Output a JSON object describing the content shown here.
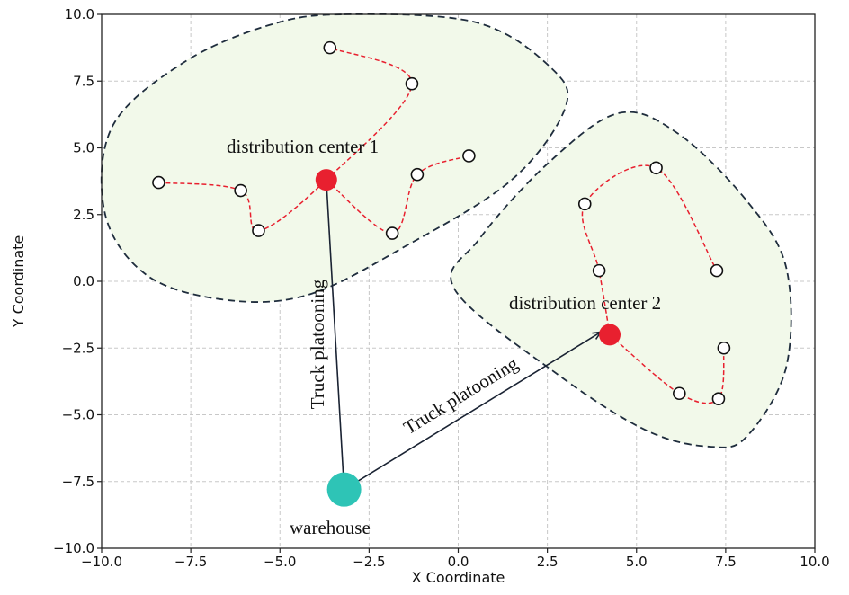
{
  "chart_data": {
    "type": "scatter",
    "xlabel": "X Coordinate",
    "ylabel": "Y Coordinate",
    "xlim": [
      -10,
      10
    ],
    "ylim": [
      -10,
      10
    ],
    "x_ticks": [
      -10,
      -7.5,
      -5,
      -2.5,
      0,
      2.5,
      5,
      7.5,
      10
    ],
    "y_ticks": [
      -10,
      -7.5,
      -5,
      -2.5,
      0,
      2.5,
      5,
      7.5,
      10
    ],
    "x_tick_labels": [
      "−10.0",
      "−7.5",
      "−5.0",
      "−2.5",
      "0.0",
      "2.5",
      "5.0",
      "7.5",
      "10.0"
    ],
    "y_tick_labels": [
      "−10.0",
      "−7.5",
      "−5.0",
      "−2.5",
      "0.0",
      "2.5",
      "5.0",
      "7.5",
      "10.0"
    ],
    "grid": true,
    "warehouse": {
      "label": "warehouse",
      "x": -3.2,
      "y": -7.8
    },
    "distribution_centers": [
      {
        "label": "distribution center 1",
        "x": -3.7,
        "y": 3.8
      },
      {
        "label": "distribution center 2",
        "x": 4.25,
        "y": -2.0
      }
    ],
    "platooning_links": [
      {
        "label": "Truck platooning",
        "from": [
          -3.2,
          -7.8
        ],
        "to": [
          -3.7,
          3.8
        ]
      },
      {
        "label": "Truck platooning",
        "from": [
          -3.2,
          -7.8
        ],
        "to": [
          4.0,
          -1.9
        ]
      }
    ],
    "customer_routes": [
      [
        [
          -8.4,
          3.7
        ],
        [
          -6.1,
          3.4
        ],
        [
          -5.6,
          1.9
        ],
        [
          -3.7,
          3.8
        ],
        [
          -1.3,
          7.4
        ],
        [
          -3.6,
          8.75
        ]
      ],
      [
        [
          -3.7,
          3.8
        ],
        [
          -1.85,
          1.8
        ],
        [
          -1.15,
          4.0
        ],
        [
          0.3,
          4.7
        ]
      ],
      [
        [
          4.25,
          -2.0
        ],
        [
          3.95,
          0.4
        ],
        [
          3.55,
          2.9
        ],
        [
          5.55,
          4.25
        ],
        [
          7.25,
          0.4
        ]
      ],
      [
        [
          4.25,
          -2.0
        ],
        [
          6.2,
          -4.2
        ],
        [
          7.3,
          -4.4
        ],
        [
          7.45,
          -2.5
        ]
      ]
    ],
    "clusters": [
      [
        [
          -3.2,
          10.0
        ],
        [
          0.5,
          9.7
        ],
        [
          2.6,
          8.0
        ],
        [
          3.0,
          6.5
        ],
        [
          1.5,
          3.8
        ],
        [
          -1.5,
          1.3
        ],
        [
          -4.2,
          -0.5
        ],
        [
          -6.5,
          -0.7
        ],
        [
          -8.7,
          0.2
        ],
        [
          -9.9,
          2.5
        ],
        [
          -9.7,
          5.8
        ],
        [
          -7.7,
          8.2
        ],
        [
          -5.3,
          9.6
        ]
      ],
      [
        [
          4.5,
          6.3
        ],
        [
          6.2,
          5.5
        ],
        [
          8.1,
          3.0
        ],
        [
          9.2,
          0.5
        ],
        [
          9.2,
          -3.2
        ],
        [
          8.1,
          -5.8
        ],
        [
          7.1,
          -6.2
        ],
        [
          5.3,
          -5.6
        ],
        [
          2.8,
          -3.5
        ],
        [
          -0.1,
          -0.3
        ],
        [
          0.6,
          1.6
        ],
        [
          2.5,
          4.4
        ]
      ]
    ],
    "colors": {
      "warehouse": "#2ec4b6",
      "distribution_center": "#e8202f",
      "route": "#e8202f",
      "cluster_fill": "#f2f9ea",
      "cluster_stroke": "#1f2d3d",
      "link": "#1a2333"
    }
  }
}
